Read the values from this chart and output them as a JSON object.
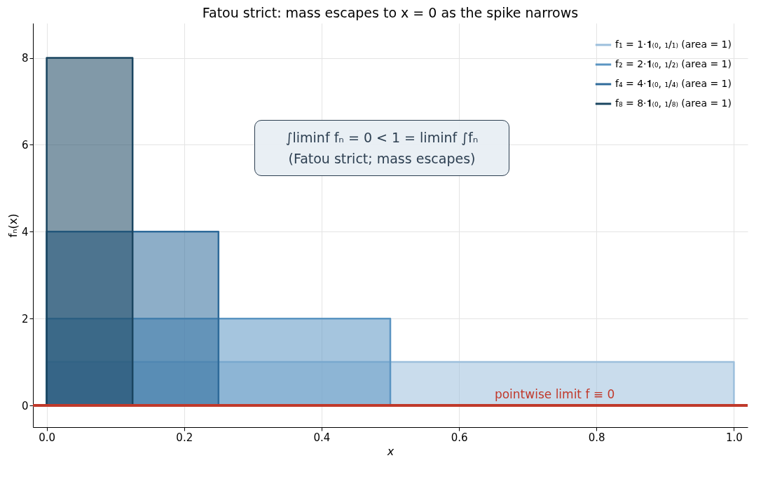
{
  "chart_data": {
    "type": "area",
    "title": "Fatou strict: mass escapes to x = 0 as the spike narrows",
    "xlabel": "x",
    "ylabel": "fₙ(x)",
    "series": [
      {
        "name": "f₁ = 1·𝟏₍₀, ₁/₁₎  (area = 1)",
        "color": "#9dbfdc",
        "x": [
          0,
          1
        ],
        "values": [
          1,
          1
        ]
      },
      {
        "name": "f₂ = 2·𝟏₍₀, ₁/₂₎  (area = 1)",
        "color": "#5b95c2",
        "x": [
          0,
          0.5
        ],
        "values": [
          2,
          2
        ]
      },
      {
        "name": "f₄ = 4·𝟏₍₀, ₁/₄₎  (area = 1)",
        "color": "#2f6b9a",
        "x": [
          0,
          0.25
        ],
        "values": [
          4,
          4
        ]
      },
      {
        "name": "f₈ = 8·𝟏₍₀, ₁/₈₎  (area = 1)",
        "color": "#1a4560",
        "x": [
          0,
          0.125
        ],
        "values": [
          8,
          8
        ]
      }
    ],
    "xlim": [
      -0.02,
      1.02
    ],
    "ylim": [
      -0.5,
      8.8
    ],
    "xticks": [
      {
        "value": 0,
        "label": "0.0"
      },
      {
        "value": 0.2,
        "label": "0.2"
      },
      {
        "value": 0.4,
        "label": "0.4"
      },
      {
        "value": 0.6,
        "label": "0.6"
      },
      {
        "value": 0.8,
        "label": "0.8"
      },
      {
        "value": 1,
        "label": "1.0"
      }
    ],
    "yticks": [
      0,
      2,
      4,
      6,
      8
    ],
    "ref_lines": [
      {
        "axis": "y",
        "value": 0,
        "label": "pointwise limit f ≡ 0",
        "color": "#c0392b"
      }
    ],
    "annotations": [
      "∫liminf fₙ = 0  <  1 = liminf ∫fₙ\n(Fatou strict; mass escapes)"
    ],
    "grid": true,
    "legend": "top right"
  }
}
